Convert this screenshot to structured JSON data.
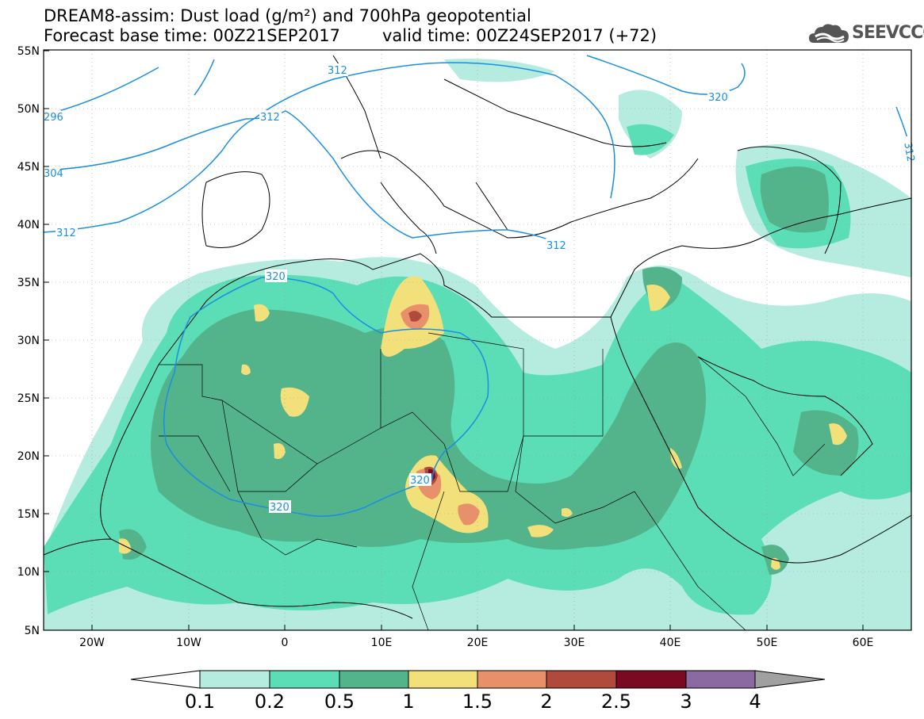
{
  "title": {
    "line1": "DREAM8-assim: Dust load (g/m²) and 700hPa geopotential",
    "line2": "Forecast base time: 00Z21SEP2017",
    "valid": "valid time: 00Z24SEP2017 (+72)"
  },
  "logo": {
    "text": "SEEVCCC",
    "icon": "cloud-icon"
  },
  "map": {
    "lat_labels": [
      "55N",
      "50N",
      "45N",
      "40N",
      "35N",
      "30N",
      "25N",
      "20N",
      "15N",
      "10N",
      "5N"
    ],
    "lon_labels": [
      "20W",
      "10W",
      "0",
      "10E",
      "20E",
      "30E",
      "40E",
      "50E",
      "60E"
    ],
    "contour_labels": [
      "312",
      "296",
      "304",
      "312",
      "312",
      "312",
      "320",
      "312",
      "320",
      "320",
      "320",
      "312"
    ],
    "colors": {
      "c1": "#b5ecdf",
      "c2": "#5bddb5",
      "c3": "#53b48b",
      "c4": "#f2e07a",
      "c5": "#e8906a",
      "c6": "#b04a3c",
      "c7": "#7a0a22",
      "c8": "#8a6aa0",
      "geopotential": "#1a8fe0"
    }
  },
  "colorbar": {
    "labels": [
      "0.1",
      "0.2",
      "0.5",
      "1",
      "1.5",
      "2",
      "2.5",
      "3",
      "4"
    ],
    "colors": [
      "#b5ecdf",
      "#5bddb5",
      "#53b48b",
      "#f2e07a",
      "#e8906a",
      "#b04a3c",
      "#7a0a22",
      "#8a6aa0"
    ]
  }
}
